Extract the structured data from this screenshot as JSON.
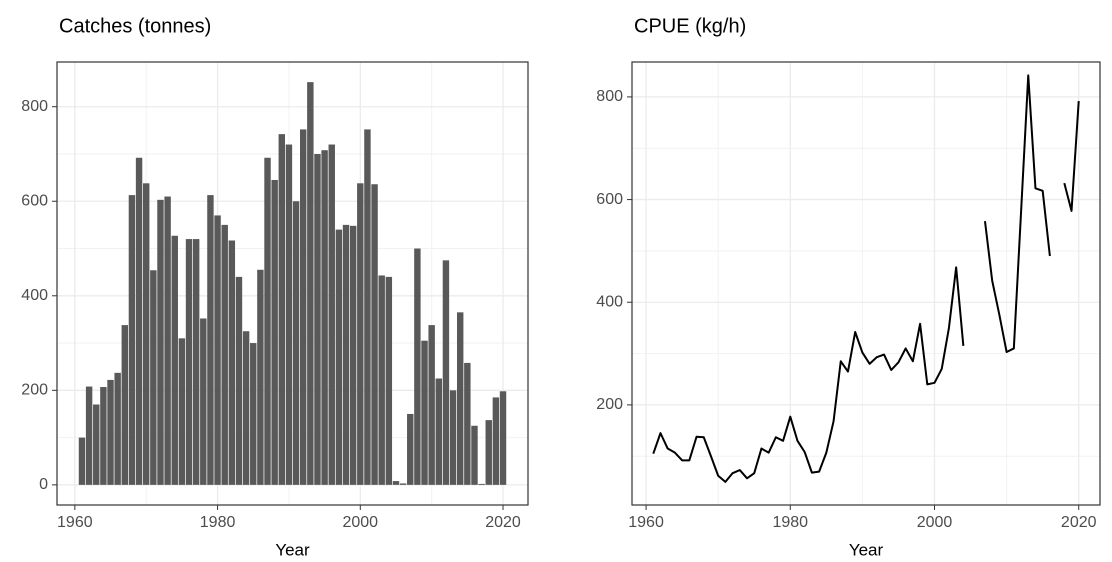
{
  "chart_data": [
    {
      "type": "bar",
      "title": "Catches (tonnes)",
      "x_label": "Year",
      "x": [
        1961,
        1962,
        1963,
        1964,
        1965,
        1966,
        1967,
        1968,
        1969,
        1970,
        1971,
        1972,
        1973,
        1974,
        1975,
        1976,
        1977,
        1978,
        1979,
        1980,
        1981,
        1982,
        1983,
        1984,
        1985,
        1986,
        1987,
        1988,
        1989,
        1990,
        1991,
        1992,
        1993,
        1994,
        1995,
        1996,
        1997,
        1998,
        1999,
        2000,
        2001,
        2002,
        2003,
        2004,
        2005,
        2006,
        2007,
        2008,
        2009,
        2010,
        2011,
        2012,
        2013,
        2014,
        2015,
        2016,
        2017,
        2018,
        2019,
        2020
      ],
      "values": [
        100,
        208,
        170,
        207,
        222,
        237,
        338,
        613,
        692,
        638,
        454,
        603,
        610,
        527,
        310,
        520,
        520,
        352,
        613,
        570,
        550,
        517,
        440,
        325,
        300,
        455,
        692,
        645,
        742,
        720,
        600,
        752,
        852,
        700,
        708,
        720,
        540,
        550,
        548,
        638,
        752,
        636,
        443,
        440,
        8,
        3,
        150,
        500,
        305,
        338,
        225,
        475,
        200,
        365,
        258,
        125,
        2,
        137,
        185,
        198
      ],
      "color": "#595959",
      "xlim": [
        1957.5,
        2023.5
      ],
      "xticks": [
        1960,
        1980,
        2000,
        2020
      ],
      "ylim": [
        -42.6,
        894.6
      ],
      "yticks": [
        0,
        200,
        400,
        600,
        800
      ],
      "grid": true
    },
    {
      "type": "line",
      "title": "CPUE (kg/h)",
      "x_label": "Year",
      "x": [
        1961,
        1962,
        1963,
        1964,
        1965,
        1966,
        1967,
        1968,
        1969,
        1970,
        1971,
        1972,
        1973,
        1974,
        1975,
        1976,
        1977,
        1978,
        1979,
        1980,
        1981,
        1982,
        1983,
        1984,
        1985,
        1986,
        1987,
        1988,
        1989,
        1990,
        1991,
        1992,
        1993,
        1994,
        1995,
        1996,
        1997,
        1998,
        1999,
        2000,
        2001,
        2002,
        2003,
        2004,
        2005,
        2006,
        2007,
        2008,
        2009,
        2010,
        2011,
        2012,
        2013,
        2014,
        2015,
        2016,
        2017,
        2018,
        2019,
        2020
      ],
      "values": [
        105,
        145,
        115,
        107,
        92,
        92,
        138,
        137,
        100,
        62,
        50,
        67,
        73,
        57,
        67,
        115,
        107,
        137,
        130,
        177,
        130,
        108,
        68,
        70,
        107,
        168,
        285,
        265,
        342,
        302,
        280,
        293,
        298,
        268,
        283,
        310,
        285,
        358,
        240,
        243,
        270,
        350,
        468,
        315,
        null,
        null,
        558,
        442,
        375,
        303,
        310,
        575,
        842,
        622,
        617,
        490,
        null,
        632,
        578,
        792
      ],
      "color": "#000000",
      "xlim": [
        1958.05,
        2022.95
      ],
      "xticks": [
        1960,
        1980,
        2000,
        2020
      ],
      "ylim": [
        5,
        868
      ],
      "yticks": [
        200,
        400,
        600,
        800
      ],
      "grid": true
    }
  ]
}
